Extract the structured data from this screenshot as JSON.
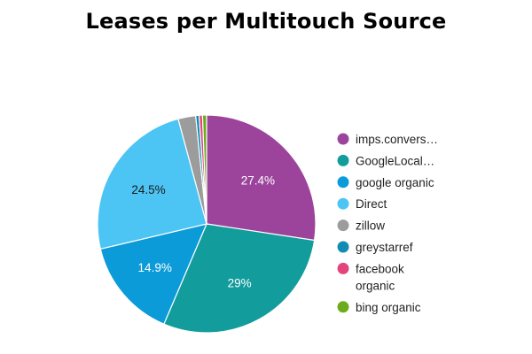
{
  "chart_data": {
    "type": "pie",
    "title": "Leases per Multitouch Source",
    "slices": [
      {
        "label": "imps.convers…",
        "value": 27.4,
        "color": "#9c449c",
        "display": "27.4%",
        "label_color": "#ffffff"
      },
      {
        "label": "GoogleLocal…",
        "value": 29.0,
        "color": "#139c9c",
        "display": "29%",
        "label_color": "#ffffff"
      },
      {
        "label": "google organic",
        "value": 14.9,
        "color": "#0b9bd8",
        "display": "14.9%",
        "label_color": "#ffffff"
      },
      {
        "label": "Direct",
        "value": 24.5,
        "color": "#4cc4f4",
        "display": "24.5%",
        "label_color": "#1a1a1a"
      },
      {
        "label": "zillow",
        "value": 2.6,
        "color": "#9c9c9c",
        "display": "",
        "label_color": "#1a1a1a"
      },
      {
        "label": "greystarref",
        "value": 0.5,
        "color": "#138cb4",
        "display": "",
        "label_color": "#ffffff"
      },
      {
        "label": "facebook organic",
        "legend_lines": [
          "facebook",
          "organic"
        ],
        "value": 0.5,
        "color": "#e4447c",
        "display": "",
        "label_color": "#ffffff"
      },
      {
        "label": "bing organic",
        "value": 0.6,
        "color": "#6cac1c",
        "display": "",
        "label_color": "#ffffff"
      }
    ],
    "start_angle_deg": 0,
    "direction": "clockwise",
    "legend_position": "right"
  }
}
